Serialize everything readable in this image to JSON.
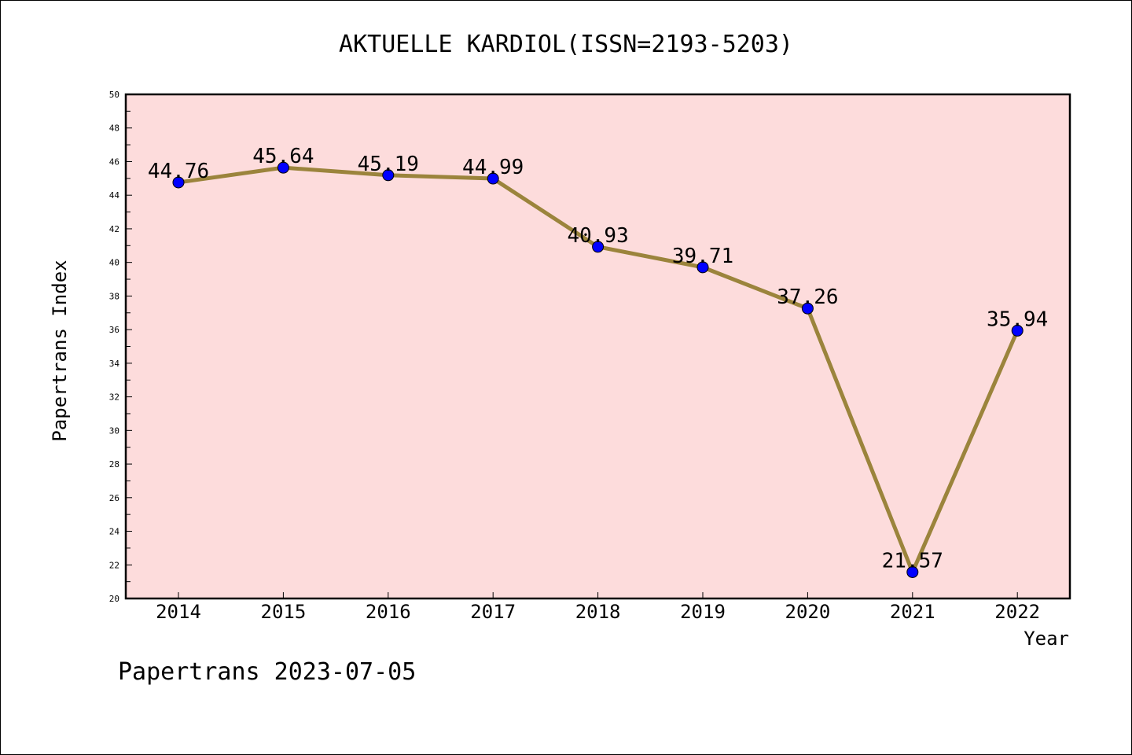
{
  "chart_data": {
    "type": "line",
    "title": "AKTUELLE KARDIOL(ISSN=2193-5203)",
    "xlabel": "Year",
    "ylabel": "Papertrans Index",
    "categories": [
      "2014",
      "2015",
      "2016",
      "2017",
      "2018",
      "2019",
      "2020",
      "2021",
      "2022"
    ],
    "values": [
      44.76,
      45.64,
      45.19,
      44.99,
      40.93,
      39.71,
      37.26,
      21.57,
      35.94
    ],
    "data_labels": [
      "44.76",
      "45.64",
      "45.19",
      "44.99",
      "40.93",
      "39.71",
      "37.26",
      "21.57",
      "35.94"
    ],
    "ylim": [
      20,
      50
    ],
    "y_ticks": [
      20,
      22,
      24,
      26,
      28,
      30,
      32,
      34,
      36,
      38,
      40,
      42,
      44,
      46,
      48,
      50
    ],
    "grid": false,
    "legend": "none",
    "footer": "Papertrans 2023-07-05",
    "colors": {
      "plot_background": "#fddcdc",
      "line": "#9b843c",
      "marker": "#0000ff",
      "axes": "#000000"
    }
  }
}
